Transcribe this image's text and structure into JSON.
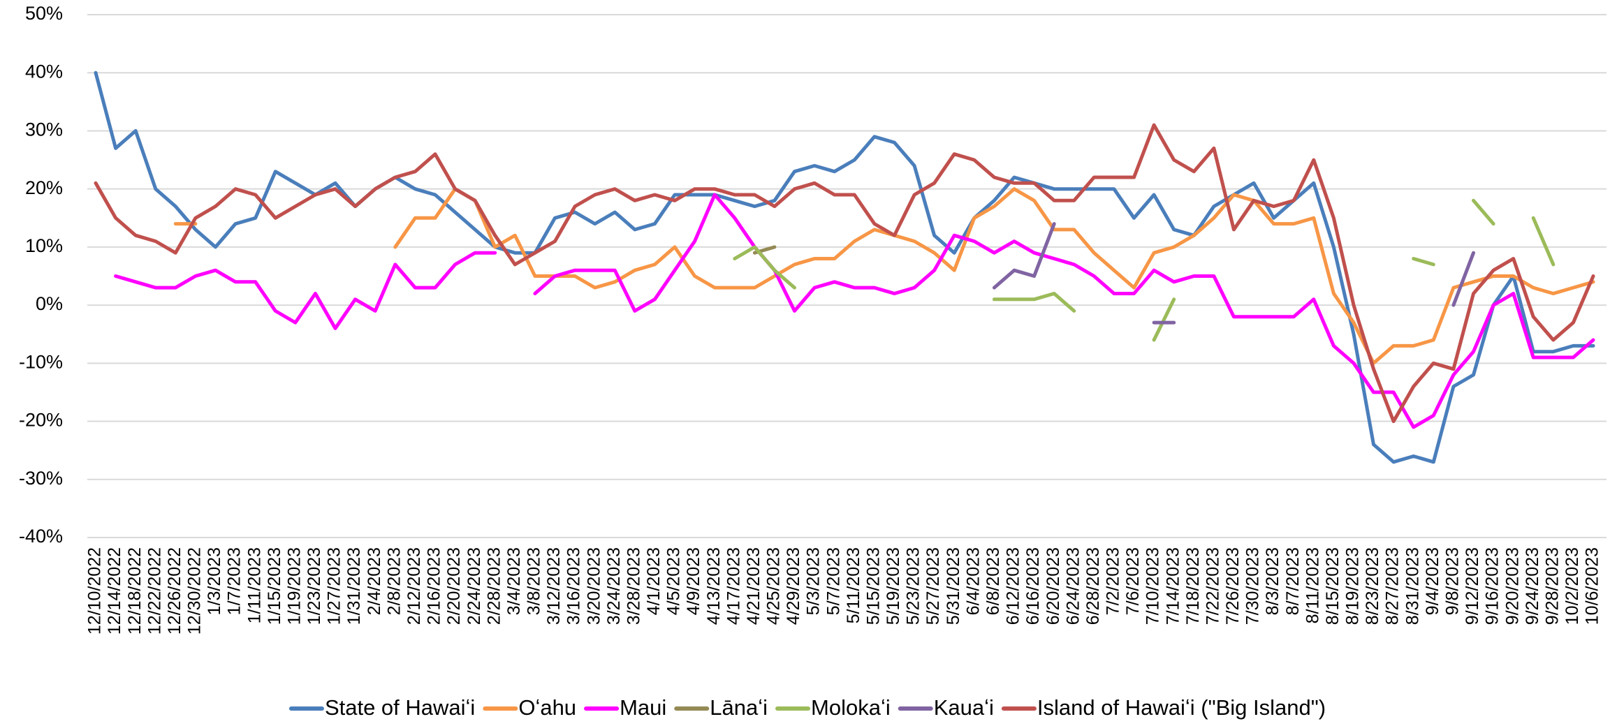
{
  "chart_data": {
    "type": "line",
    "categories": [
      "12/10/2022",
      "12/14/2022",
      "12/18/2022",
      "12/22/2022",
      "12/26/2022",
      "12/30/2022",
      "1/3/2023",
      "1/7/2023",
      "1/11/2023",
      "1/15/2023",
      "1/19/2023",
      "1/23/2023",
      "1/27/2023",
      "1/31/2023",
      "2/4/2023",
      "2/8/2023",
      "2/12/2023",
      "2/16/2023",
      "2/20/2023",
      "2/24/2023",
      "2/28/2023",
      "3/4/2023",
      "3/8/2023",
      "3/12/2023",
      "3/16/2023",
      "3/20/2023",
      "3/24/2023",
      "3/28/2023",
      "4/1/2023",
      "4/5/2023",
      "4/9/2023",
      "4/13/2023",
      "4/17/2023",
      "4/21/2023",
      "4/25/2023",
      "4/29/2023",
      "5/3/2023",
      "5/7/2023",
      "5/11/2023",
      "5/15/2023",
      "5/19/2023",
      "5/23/2023",
      "5/27/2023",
      "5/31/2023",
      "6/4/2023",
      "6/8/2023",
      "6/12/2023",
      "6/16/2023",
      "6/20/2023",
      "6/24/2023",
      "6/28/2023",
      "7/2/2023",
      "7/6/2023",
      "7/10/2023",
      "7/14/2023",
      "7/18/2023",
      "7/22/2023",
      "7/26/2023",
      "7/30/2023",
      "8/3/2023",
      "8/7/2023",
      "8/11/2023",
      "8/15/2023",
      "8/19/2023",
      "8/23/2023",
      "8/27/2023",
      "8/31/2023",
      "9/4/2023",
      "9/8/2023",
      "9/12/2023",
      "9/16/2023",
      "9/20/2023",
      "9/24/2023",
      "9/28/2023",
      "10/2/2023",
      "10/6/2023"
    ],
    "series": [
      {
        "name": "State of Hawaiʻi",
        "color": "#4a7ebb",
        "values": [
          40,
          27,
          30,
          20,
          17,
          13,
          10,
          14,
          15,
          23,
          21,
          19,
          21,
          17,
          20,
          22,
          20,
          19,
          16,
          13,
          10,
          9,
          9,
          15,
          16,
          14,
          16,
          13,
          14,
          19,
          19,
          19,
          18,
          17,
          18,
          23,
          24,
          23,
          25,
          29,
          28,
          24,
          12,
          9,
          15,
          18,
          22,
          21,
          20,
          20,
          20,
          20,
          15,
          19,
          13,
          12,
          17,
          19,
          21,
          15,
          18,
          21,
          10,
          -5,
          -24,
          -27,
          -26,
          -27,
          -14,
          -12,
          0,
          5,
          -8,
          -8,
          -7,
          -7
        ]
      },
      {
        "name": "Oʻahu",
        "color": "#f79646",
        "values": [
          null,
          null,
          null,
          null,
          14,
          14,
          null,
          null,
          null,
          null,
          null,
          null,
          null,
          null,
          null,
          10,
          15,
          15,
          20,
          18,
          10,
          12,
          5,
          5,
          5,
          3,
          4,
          6,
          7,
          10,
          5,
          3,
          3,
          3,
          5,
          7,
          8,
          8,
          11,
          13,
          12,
          11,
          9,
          6,
          15,
          17,
          20,
          18,
          13,
          13,
          9,
          6,
          3,
          9,
          10,
          12,
          15,
          19,
          18,
          14,
          14,
          15,
          2,
          -3,
          -10,
          -7,
          -7,
          -6,
          3,
          4,
          5,
          5,
          3,
          2,
          3,
          4
        ]
      },
      {
        "name": "Maui",
        "color": "#ff00ff",
        "values": [
          null,
          5,
          4,
          3,
          3,
          5,
          6,
          4,
          4,
          -1,
          -3,
          2,
          -4,
          1,
          -1,
          7,
          3,
          3,
          7,
          9,
          9,
          null,
          2,
          5,
          6,
          6,
          6,
          -1,
          1,
          6,
          11,
          19,
          15,
          10,
          6,
          -1,
          3,
          4,
          3,
          3,
          2,
          3,
          6,
          12,
          11,
          9,
          11,
          9,
          8,
          7,
          5,
          2,
          2,
          6,
          4,
          5,
          5,
          -2,
          -2,
          -2,
          -2,
          1,
          -7,
          -10,
          -15,
          -15,
          -21,
          -19,
          -12,
          -8,
          0,
          2,
          -9,
          -9,
          -9,
          -6
        ]
      },
      {
        "name": "Lānaʻi",
        "color": "#948a54",
        "values": [
          null,
          null,
          null,
          null,
          null,
          null,
          null,
          null,
          null,
          null,
          null,
          null,
          null,
          null,
          null,
          null,
          null,
          null,
          null,
          null,
          null,
          null,
          null,
          null,
          null,
          null,
          null,
          null,
          null,
          null,
          null,
          null,
          null,
          9,
          10,
          null,
          null,
          null,
          null,
          null,
          null,
          null,
          null,
          null,
          null,
          null,
          null,
          null,
          null,
          null,
          null,
          null,
          null,
          null,
          null,
          null,
          null,
          null,
          null,
          null,
          null,
          null,
          null,
          null,
          null,
          null,
          null,
          null,
          null,
          null,
          null,
          null,
          null,
          null,
          null,
          null
        ]
      },
      {
        "name": "Molokaʻi",
        "color": "#9bbb59",
        "values": [
          null,
          null,
          null,
          null,
          null,
          null,
          null,
          null,
          null,
          null,
          null,
          null,
          null,
          null,
          null,
          null,
          null,
          null,
          null,
          null,
          null,
          null,
          null,
          null,
          null,
          null,
          null,
          null,
          null,
          null,
          null,
          null,
          8,
          10,
          6,
          3,
          null,
          null,
          null,
          null,
          null,
          null,
          null,
          null,
          null,
          1,
          1,
          1,
          2,
          -1,
          null,
          null,
          null,
          -6,
          1,
          null,
          null,
          null,
          null,
          null,
          null,
          null,
          null,
          null,
          null,
          null,
          8,
          7,
          null,
          18,
          14,
          null,
          15,
          7,
          null,
          null
        ]
      },
      {
        "name": "Kauaʻi",
        "color": "#8064a2",
        "values": [
          null,
          null,
          null,
          null,
          null,
          null,
          null,
          null,
          null,
          null,
          null,
          null,
          null,
          null,
          null,
          null,
          null,
          null,
          null,
          null,
          null,
          null,
          null,
          null,
          null,
          null,
          null,
          null,
          null,
          null,
          null,
          null,
          null,
          null,
          null,
          null,
          null,
          null,
          null,
          null,
          null,
          null,
          null,
          null,
          null,
          3,
          6,
          5,
          14,
          null,
          null,
          null,
          null,
          -3,
          -3,
          null,
          null,
          null,
          null,
          null,
          null,
          null,
          null,
          null,
          null,
          null,
          null,
          null,
          0,
          9,
          null,
          null,
          null,
          null,
          null,
          null
        ]
      },
      {
        "name": "Island of Hawaiʻi (\"Big Island\")",
        "color": "#c0504d",
        "values": [
          21,
          15,
          12,
          11,
          9,
          15,
          17,
          20,
          19,
          15,
          17,
          19,
          20,
          17,
          20,
          22,
          23,
          26,
          20,
          18,
          12,
          7,
          9,
          11,
          17,
          19,
          20,
          18,
          19,
          18,
          20,
          20,
          19,
          19,
          17,
          20,
          21,
          19,
          19,
          14,
          12,
          19,
          21,
          26,
          25,
          22,
          21,
          21,
          18,
          18,
          22,
          22,
          22,
          31,
          25,
          23,
          27,
          13,
          18,
          17,
          18,
          25,
          15,
          0,
          -11,
          -20,
          -14,
          -10,
          -11,
          2,
          6,
          8,
          -2,
          -6,
          -3,
          5
        ]
      }
    ],
    "ylim": [
      -40,
      50
    ],
    "yticks": [
      {
        "value": -40,
        "label": "-40%"
      },
      {
        "value": -30,
        "label": "-30%"
      },
      {
        "value": -20,
        "label": "-20%"
      },
      {
        "value": -10,
        "label": "-10%"
      },
      {
        "value": 0,
        "label": "0%"
      },
      {
        "value": 10,
        "label": "10%"
      },
      {
        "value": 20,
        "label": "20%"
      },
      {
        "value": 30,
        "label": "30%"
      },
      {
        "value": 40,
        "label": "40%"
      },
      {
        "value": 50,
        "label": "50%"
      }
    ],
    "grid": true
  }
}
